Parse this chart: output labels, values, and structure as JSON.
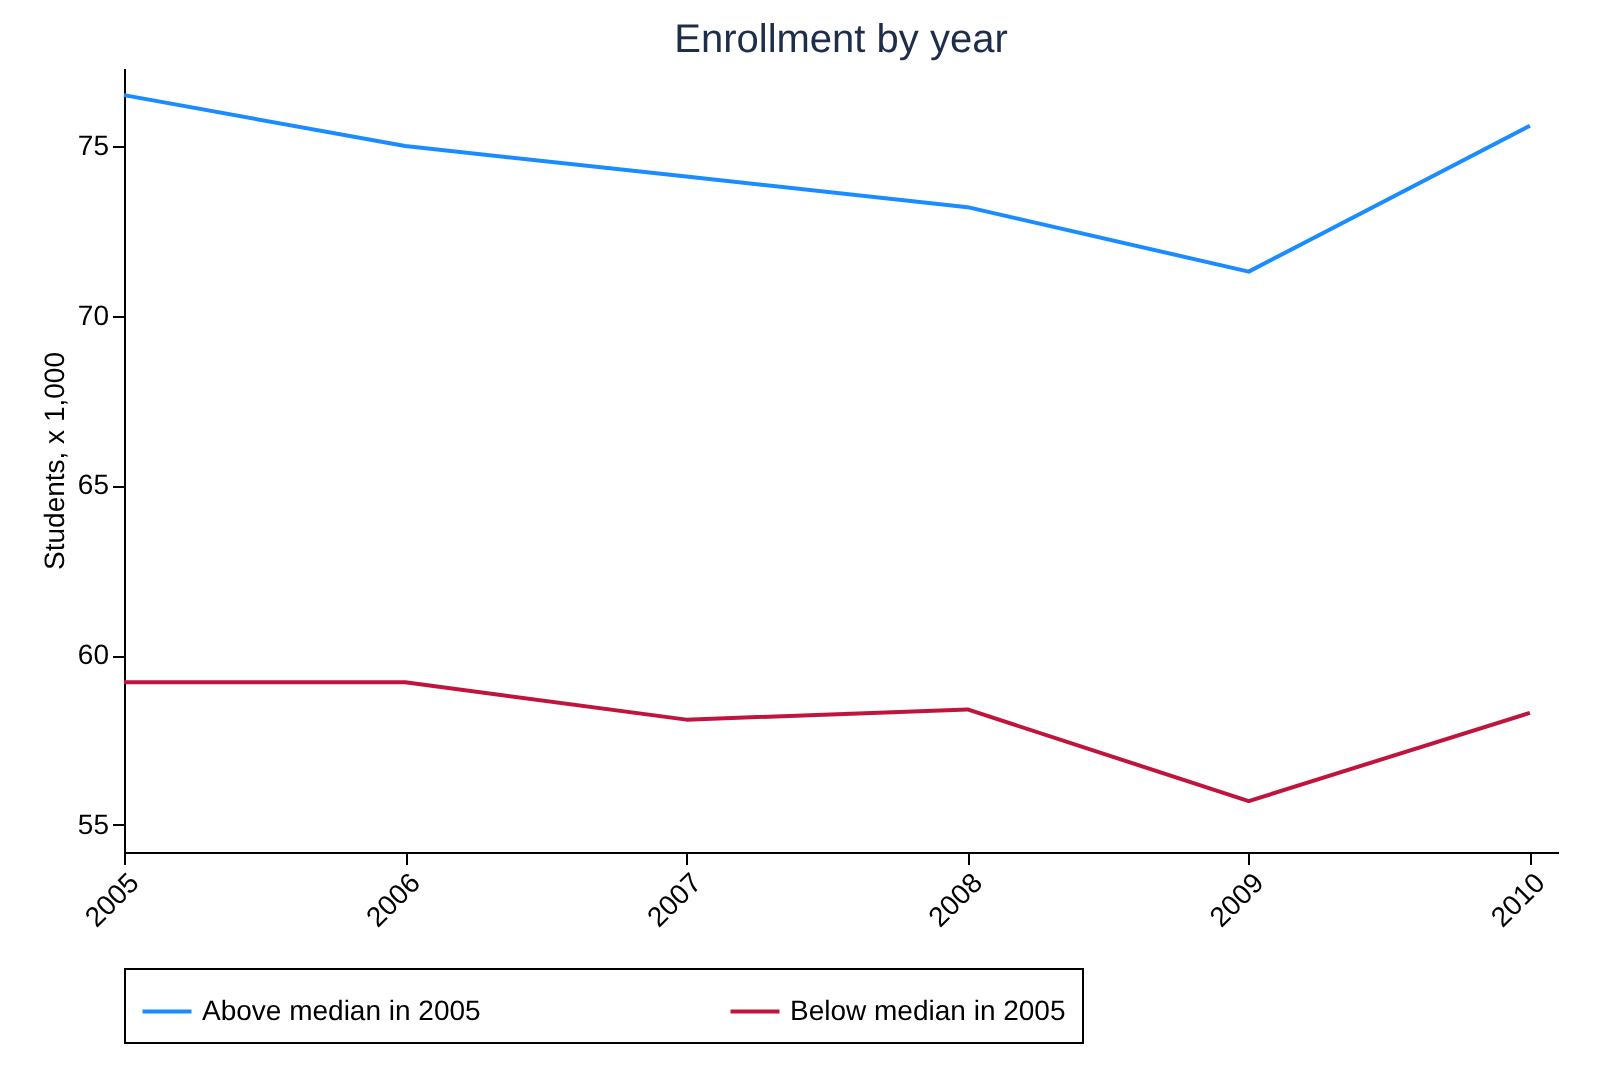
{
  "chart_data": {
    "type": "line",
    "title": "Enrollment by year",
    "ylabel": "Students, x 1,000",
    "x": [
      2005,
      2006,
      2007,
      2008,
      2009,
      2010
    ],
    "series": [
      {
        "name": "Above median in 2005",
        "color": "#1a8cff",
        "values": [
          76.5,
          75.0,
          74.1,
          73.2,
          71.3,
          75.6
        ]
      },
      {
        "name": "Below median in 2005",
        "color": "#c0143c",
        "values": [
          59.2,
          59.2,
          58.1,
          58.4,
          55.7,
          58.3
        ]
      }
    ],
    "xlim": [
      2005,
      2010.1
    ],
    "xticks": [
      2005,
      2006,
      2007,
      2008,
      2009,
      2010
    ],
    "ylim": [
      54.2,
      77.3
    ],
    "yticks": [
      55,
      60,
      65,
      70,
      75
    ],
    "grid": false,
    "legend": "bottom",
    "marker": "none",
    "line_style": "solid"
  }
}
